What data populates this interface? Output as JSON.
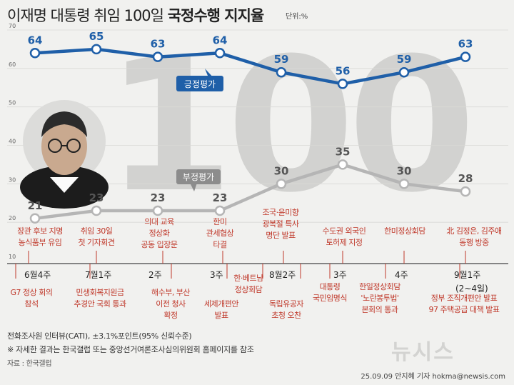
{
  "header": {
    "title_prefix": "이재명 대통령 취임 100일",
    "title_bold": "국정수행 지지율",
    "unit": "단위:%"
  },
  "chart_data": {
    "type": "line",
    "title": "이재명 대통령 취임 100일 국정수행 지지율",
    "ylabel": "단위:%",
    "ylim": [
      10,
      70
    ],
    "yticks": [
      "70",
      "60",
      "50",
      "40",
      "30",
      "20",
      "10"
    ],
    "background_text": "100",
    "categories": [
      "6월4주",
      "7월1주",
      "2주",
      "3주",
      "8월2주",
      "3주",
      "4주",
      "9월1주 (2~4일)"
    ],
    "series": [
      {
        "name": "긍정평가",
        "color": "#1f5fa8",
        "values": [
          64,
          65,
          63,
          64,
          59,
          56,
          59,
          63
        ]
      },
      {
        "name": "부정평가",
        "color": "#b5b5b5",
        "values": [
          21,
          23,
          23,
          23,
          30,
          35,
          30,
          28
        ]
      }
    ]
  },
  "weeks": [
    "6월4주",
    "7월1주",
    "2주",
    "3주",
    "8월2주",
    "3주",
    "4주",
    "9월1주",
    "(2~4일)"
  ],
  "events_above": [
    {
      "lines": [
        "장관 후보 지명",
        "농식품부 유임"
      ]
    },
    {
      "lines": [
        "취임 30일",
        "첫 기자회견"
      ]
    },
    {
      "lines": [
        "의대 교육",
        "정상화",
        "공동 입장문"
      ]
    },
    {
      "lines": [
        "한미",
        "관세협상",
        "타결"
      ]
    },
    {
      "lines": [
        "조국·윤미향",
        "광복절 특사",
        "명단 발표"
      ]
    },
    {
      "lines": [
        "수도권 외국인",
        "토허제 지정"
      ]
    },
    {
      "lines": [
        "한미정상회담"
      ]
    },
    {
      "lines": [
        "北 김정은, 김주애",
        "동행 방중"
      ]
    }
  ],
  "events_below": [
    {
      "lines": [
        "G7 정상 회의",
        "참석"
      ]
    },
    {
      "lines": [
        "민생회복지원금",
        "추경안 국회 통과"
      ]
    },
    {
      "lines": [
        "해수부, 부산",
        "이전 청사",
        "확정"
      ]
    },
    {
      "lines": [
        "세제개편안",
        "발표"
      ]
    },
    {
      "lines": [
        "한·베트남",
        "정상회담"
      ]
    },
    {
      "lines": [
        "독립유공자",
        "초청 오찬"
      ]
    },
    {
      "lines": [
        "대통령",
        "국민임명식"
      ]
    },
    {
      "lines": [
        "한일정상회담",
        "'노란봉투법'",
        "본회의 통과"
      ]
    },
    {
      "lines": [
        "정부 조직개편안 발표",
        "97 주택공급 대책 발표"
      ]
    }
  ],
  "footer": {
    "method": "전화조사원 인터뷰(CATI),   ±3.1%포인트(95% 신뢰수준)",
    "note": "※ 자세한 결과는 한국갤럽 또는 중앙선거여론조사심의위원회 홈페이지를 참조",
    "source": "자료 : 한국갤럽",
    "credit": "25.09.09  안지혜  기자  hokma@newsis.com",
    "logo": "뉴시스"
  }
}
